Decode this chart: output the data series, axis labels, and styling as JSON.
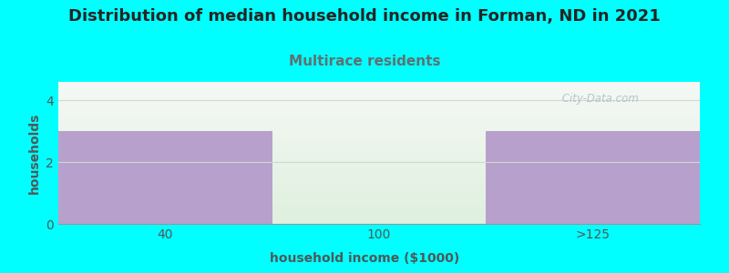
{
  "title": "Distribution of median household income in Forman, ND in 2021",
  "subtitle": "Multirace residents",
  "xlabel": "household income ($1000)",
  "ylabel": "households",
  "categories": [
    "40",
    "100",
    ">125"
  ],
  "values": [
    3,
    0,
    3
  ],
  "bar_color": "#b8a0cc",
  "background_color": "#00ffff",
  "plot_bg_top": "#f5f8f5",
  "plot_bg_bottom": "#dff0df",
  "title_fontsize": 13,
  "subtitle_fontsize": 11,
  "subtitle_color": "#607070",
  "axis_label_fontsize": 10,
  "tick_fontsize": 10,
  "ylabel_color": "#505858",
  "xlabel_color": "#505858",
  "ylim": [
    0,
    4.6
  ],
  "yticks": [
    0,
    2,
    4
  ],
  "bar_width": 1.0,
  "watermark": " City-Data.com",
  "watermark_color": "#aabcc5",
  "grid_color": "#d0d8d0",
  "tick_color": "#505858"
}
